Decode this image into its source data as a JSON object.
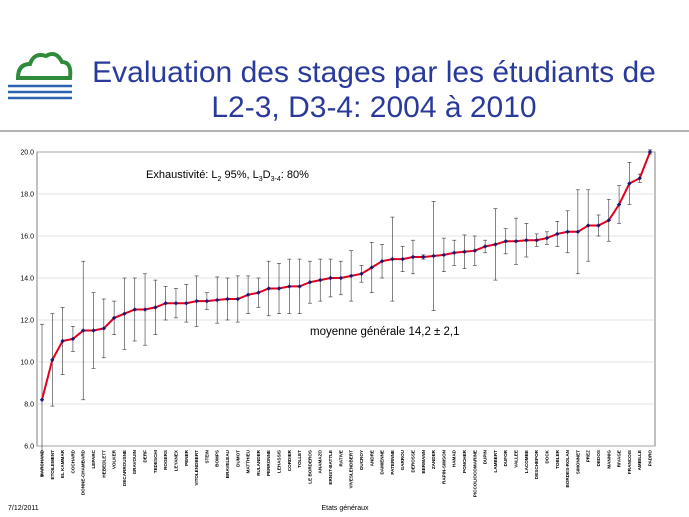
{
  "header": {
    "title_lines": [
      "Evaluation des stages par les étudiants de",
      "L2-3, D3-4: 2004 à 2010"
    ]
  },
  "chart_data": {
    "type": "line",
    "annotation_parts": [
      "Exhaustivité: L",
      "2",
      " 95%, L",
      "3",
      "D",
      "3-4",
      ": 80%"
    ],
    "mean_label": "moyenne générale 14,2 ± 2,1",
    "categories": [
      "MARCHAND",
      "ETOILEMENT",
      "EL KAMMAR",
      "COCHARD",
      "DONNE-CHAMBARD",
      "LEPARC",
      "HEBEDLETT",
      "VOLKER",
      "DECARROUSNE",
      "GRAVOUIN",
      "DERF",
      "TEDESCHI",
      "ROGERS",
      "LEYANEX",
      "PENER",
      "VITOLENDBERT",
      "STEIN",
      "BOMPS",
      "BRAVELEAU",
      "DUMOT",
      "MATTHIEU",
      "RULANDER",
      "PERRONNE",
      "LEHASSIS",
      "CORDIER",
      "TOLLET",
      "LE BORDEROS",
      "ANAMAZO",
      "ERNST-BATTLE",
      "RATIVE",
      "VIVESLENDBERT",
      "DUCROY",
      "ANDRE",
      "DAMIENNE",
      "PATERNNE",
      "GARROU",
      "DEROSSE",
      "BERMANN",
      "ZANDER",
      "RAPIN-SIMSON",
      "HAMAD",
      "PONCHER",
      "PICCOLIOCOMARINE",
      "DUPIN",
      "LAMBERT",
      "DUFOR",
      "VALLEE",
      "LACOMBE",
      "DESCHEPOR",
      "DOCK",
      "TOBLER",
      "BORDES-ROLAN",
      "SIMONNET",
      "PREZ",
      "DEDOS",
      "MANNIG",
      "RIVAGE",
      "FRANCOIS",
      "AMBILLE",
      "PADRO"
    ],
    "values": [
      8.2,
      10.1,
      11.0,
      11.1,
      11.5,
      11.5,
      11.6,
      12.1,
      12.3,
      12.5,
      12.5,
      12.6,
      12.8,
      12.8,
      12.8,
      12.9,
      12.9,
      12.95,
      13.0,
      13.0,
      13.2,
      13.3,
      13.5,
      13.5,
      13.6,
      13.6,
      13.8,
      13.9,
      14.0,
      14.0,
      14.1,
      14.2,
      14.5,
      14.8,
      14.9,
      14.9,
      15.0,
      15.0,
      15.05,
      15.1,
      15.2,
      15.25,
      15.3,
      15.5,
      15.6,
      15.75,
      15.75,
      15.8,
      15.8,
      15.9,
      16.1,
      16.2,
      16.2,
      16.5,
      16.5,
      16.75,
      17.5,
      18.5,
      18.75,
      20.0
    ],
    "errors": [
      3.6,
      2.2,
      1.6,
      0.6,
      3.3,
      1.8,
      1.4,
      0.8,
      1.7,
      1.5,
      1.7,
      1.3,
      0.8,
      0.7,
      0.9,
      1.2,
      0.4,
      1.1,
      1.0,
      1.1,
      0.9,
      0.7,
      1.3,
      1.2,
      1.3,
      1.3,
      1.0,
      1.0,
      0.9,
      0.8,
      1.2,
      0.4,
      1.2,
      0.8,
      2.0,
      0.6,
      0.8,
      0.1,
      2.6,
      0.8,
      0.6,
      0.8,
      0.7,
      0.3,
      1.7,
      0.6,
      1.1,
      0.8,
      0.3,
      0.3,
      0.6,
      1.0,
      2.0,
      1.7,
      0.5,
      1.0,
      0.9,
      1.0,
      0.2,
      0.1
    ],
    "line_color": "#e00020",
    "marker_color": "#1a1a6e",
    "ylim": [
      6.0,
      20.0
    ],
    "yticks": [
      {
        "value": 6,
        "label": "6.0"
      },
      {
        "value": 8,
        "label": "8.0"
      },
      {
        "value": 10,
        "label": "10.0"
      },
      {
        "value": 12,
        "label": "12.0"
      },
      {
        "value": 14,
        "label": "14.0"
      },
      {
        "value": 16,
        "label": "16.0"
      },
      {
        "value": 18,
        "label": "18.0"
      },
      {
        "value": 20,
        "label": "20.0"
      }
    ],
    "grid": true
  },
  "footer": {
    "date": "7/12/2011",
    "center": "Etats généraux"
  }
}
